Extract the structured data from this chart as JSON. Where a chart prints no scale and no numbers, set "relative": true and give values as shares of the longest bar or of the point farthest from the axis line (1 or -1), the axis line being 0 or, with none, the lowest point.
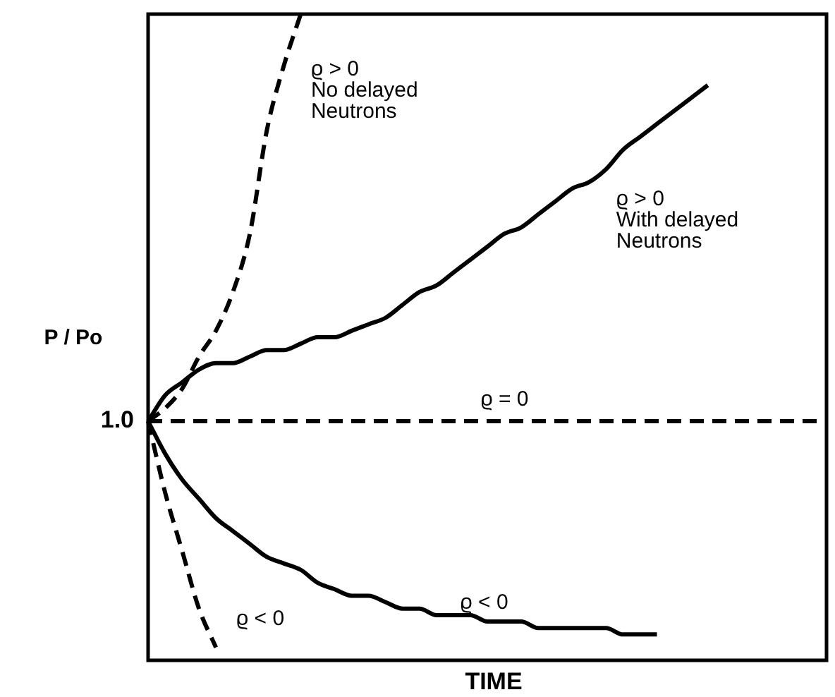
{
  "chart_data": {
    "type": "line",
    "relative": true,
    "xlabel": "TIME",
    "ylabel": "P / Po",
    "annotations": [
      "1.0"
    ],
    "categories": [
      null,
      null,
      null,
      null,
      null,
      null,
      null,
      null,
      null,
      null,
      null,
      null,
      null,
      null,
      null,
      null,
      null,
      null,
      null,
      null,
      null,
      null,
      null,
      null,
      null,
      null,
      null,
      null,
      null,
      null,
      null,
      null,
      null,
      null,
      null,
      null,
      null,
      null,
      null,
      null,
      null
    ],
    "series": [
      {
        "name": "ϱ > 0\nNo delayed\nNeutrons",
        "color": "#000000",
        "line_style": "dashed",
        "values": [
          0.37,
          0.39,
          0.42,
          0.47,
          0.51,
          0.57,
          0.66,
          0.82,
          0.92,
          1.0,
          null,
          null,
          null,
          null,
          null,
          null,
          null,
          null,
          null,
          null,
          null,
          null,
          null,
          null,
          null,
          null,
          null,
          null,
          null,
          null,
          null,
          null,
          null,
          null,
          null,
          null,
          null,
          null,
          null,
          null,
          null
        ]
      },
      {
        "name": "ϱ > 0\nWith delayed\nNeutrons",
        "color": "#000000",
        "line_style": "solid",
        "values": [
          0.37,
          0.41,
          0.43,
          0.45,
          0.46,
          0.46,
          0.47,
          0.48,
          0.48,
          0.49,
          0.5,
          0.5,
          0.51,
          0.52,
          0.53,
          0.55,
          0.57,
          0.58,
          0.6,
          0.62,
          0.64,
          0.66,
          0.67,
          0.69,
          0.71,
          0.73,
          0.74,
          0.76,
          0.79,
          0.81,
          0.83,
          0.85,
          0.87,
          0.89,
          null,
          null,
          null,
          null,
          null,
          null,
          null
        ]
      },
      {
        "name": "ϱ = 0",
        "color": "#000000",
        "line_style": "dashed",
        "values": [
          0.37,
          0.37,
          0.37,
          0.37,
          0.37,
          0.37,
          0.37,
          0.37,
          0.37,
          0.37,
          0.37,
          0.37,
          0.37,
          0.37,
          0.37,
          0.37,
          0.37,
          0.37,
          0.37,
          0.37,
          0.37,
          0.37,
          0.37,
          0.37,
          0.37,
          0.37,
          0.37,
          0.37,
          0.37,
          0.37,
          0.37,
          0.37,
          0.37,
          0.37,
          0.37,
          0.37,
          0.37,
          0.37,
          0.37,
          0.37,
          0.37
        ]
      },
      {
        "name": "ϱ < 0",
        "color": "#000000",
        "line_style": "solid",
        "values": [
          0.37,
          0.32,
          0.28,
          0.25,
          0.22,
          0.2,
          0.18,
          0.16,
          0.15,
          0.14,
          0.12,
          0.11,
          0.1,
          0.1,
          0.09,
          0.08,
          0.08,
          0.07,
          0.07,
          0.07,
          0.06,
          0.06,
          0.06,
          0.05,
          0.05,
          0.05,
          0.05,
          0.05,
          0.04,
          0.04,
          0.04,
          null,
          null,
          null,
          null,
          null,
          null,
          null,
          null,
          null,
          null
        ]
      },
      {
        "name": "ϱ < 0",
        "color": "#000000",
        "line_style": "dashed",
        "values": [
          0.37,
          0.26,
          0.17,
          0.08,
          0.02,
          null,
          null,
          null,
          null,
          null,
          null,
          null,
          null,
          null,
          null,
          null,
          null,
          null,
          null,
          null,
          null,
          null,
          null,
          null,
          null,
          null,
          null,
          null,
          null,
          null,
          null,
          null,
          null,
          null,
          null,
          null,
          null,
          null,
          null,
          null,
          null
        ]
      }
    ]
  }
}
